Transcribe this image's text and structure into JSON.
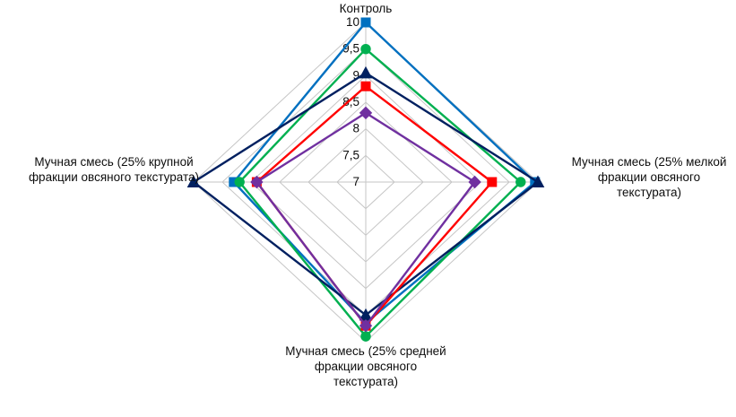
{
  "chart_data": {
    "type": "radar",
    "title": "",
    "categories": [
      "Контроль",
      "Мучная смесь (25% мелкой фракции овсяного текстурата)",
      "Мучная смесь (25% средней фракции овсяного текстурата)",
      "Мучная смесь (25% крупной фракции овсяного текстурата)"
    ],
    "axis_order": [
      "top",
      "right",
      "bottom",
      "left"
    ],
    "scale": {
      "min": 7,
      "max": 10,
      "step": 0.5
    },
    "tick_labels": [
      "10",
      "9,5",
      "9",
      "8,5",
      "8",
      "7,5",
      "7"
    ],
    "grid": true,
    "legend_position": "none",
    "grid_color": "#c6c6c6",
    "series": [
      {
        "name": "series-blue",
        "color": "#0070C0",
        "marker": "square",
        "values": [
          10,
          9.95,
          9.65,
          9.3
        ]
      },
      {
        "name": "series-green",
        "color": "#00B050",
        "marker": "circle",
        "values": [
          9.5,
          9.7,
          9.9,
          9.2
        ]
      },
      {
        "name": "series-navy",
        "color": "#002060",
        "marker": "triangle",
        "values": [
          9.05,
          10,
          9.5,
          10
        ]
      },
      {
        "name": "series-red",
        "color": "#FF0000",
        "marker": "square",
        "values": [
          8.8,
          9.2,
          9.7,
          8.9
        ]
      },
      {
        "name": "series-purple",
        "color": "#7030A0",
        "marker": "diamond",
        "values": [
          8.3,
          8.9,
          9.7,
          8.9
        ]
      }
    ]
  },
  "labels": {
    "top": "Контроль",
    "right": "Мучная смесь (25% мелкой фракции овсяного текстурата)",
    "bottom": "Мучная смесь (25% средней фракции овсяного текстурата)",
    "left": "Мучная смесь (25% крупной фракции овсяного текстурата)"
  }
}
